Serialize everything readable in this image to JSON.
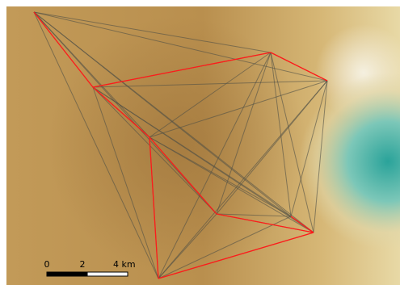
{
  "scale_bar": {
    "labels": [
      "0",
      "2",
      "4 km"
    ]
  }
}
